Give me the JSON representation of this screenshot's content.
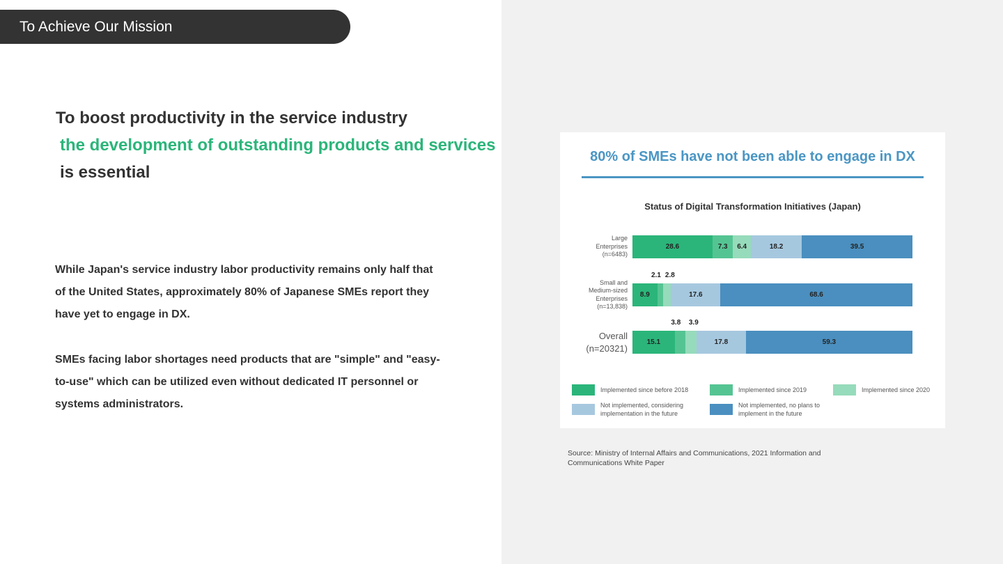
{
  "header": {
    "section_label": "To Achieve Our Mission"
  },
  "headline": {
    "line1": "To boost productivity in the service industry",
    "line2": "the development of outstanding products and services",
    "line3": "is essential"
  },
  "body": {
    "para1": "While Japan's service industry labor productivity remains only half that of the United States, approximately 80% of Japanese SMEs report they have yet to engage in DX.",
    "para2": "SMEs facing labor shortages need products that are \"simple\" and \"easy-to-use\" which can be utilized even without dedicated IT personnel or systems administrators."
  },
  "card": {
    "title": "80% of SMEs have not been able to engage in DX"
  },
  "source": "Source: Ministry of Internal Affairs and Communications, 2021 Information and Communications White Paper",
  "chart_data": {
    "type": "bar",
    "orientation": "horizontal-stacked-100",
    "title": "Status of Digital Transformation Initiatives (Japan)",
    "categories": [
      {
        "lines": [
          "Large",
          "Enterprises",
          "(n=6483)"
        ]
      },
      {
        "lines": [
          "Small and",
          "Medium-sized",
          "Enterprises",
          "(n=13,838)"
        ]
      },
      {
        "lines": [
          "Overall",
          "(n=20321)"
        ]
      }
    ],
    "series": [
      {
        "name": "Implemented since before 2018",
        "color": "#2bb57a",
        "values": [
          28.6,
          8.9,
          15.1
        ]
      },
      {
        "name": "Implemented since 2019",
        "color": "#55c493",
        "values": [
          7.3,
          2.1,
          3.8
        ]
      },
      {
        "name": "Implemented since 2020",
        "color": "#96dbbb",
        "values": [
          6.4,
          2.8,
          3.9
        ]
      },
      {
        "name": "Not implemented, considering implementation in the future",
        "color": "#a6c8df",
        "values": [
          18.2,
          17.6,
          17.8
        ]
      },
      {
        "name": "Not implemented, no plans to implement in the future",
        "color": "#4a8fbf",
        "values": [
          39.5,
          68.6,
          59.3
        ]
      }
    ],
    "xlim": [
      0,
      100
    ],
    "legend": "bottom"
  }
}
